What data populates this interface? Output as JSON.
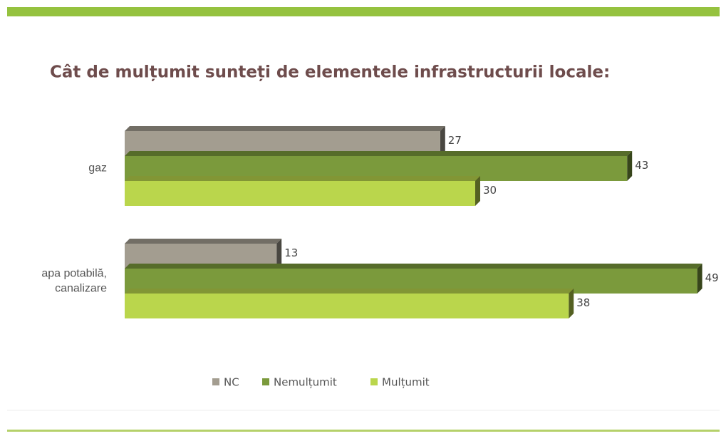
{
  "chart_data": {
    "type": "bar3d_horizontal",
    "title": "Cât de mulțumit sunteți de elementele infrastructurii locale:",
    "categories": [
      "gaz",
      "apa potabilă,\ncanalizare"
    ],
    "series": [
      {
        "name": "NC",
        "color": "#a39d90",
        "values": [
          27,
          13
        ]
      },
      {
        "name": "Nemulțumit",
        "color": "#7b9a3c",
        "values": [
          43,
          49
        ]
      },
      {
        "name": "Mulțumit",
        "color": "#bad64c",
        "values": [
          30,
          38
        ]
      }
    ],
    "legend": "bottom"
  }
}
